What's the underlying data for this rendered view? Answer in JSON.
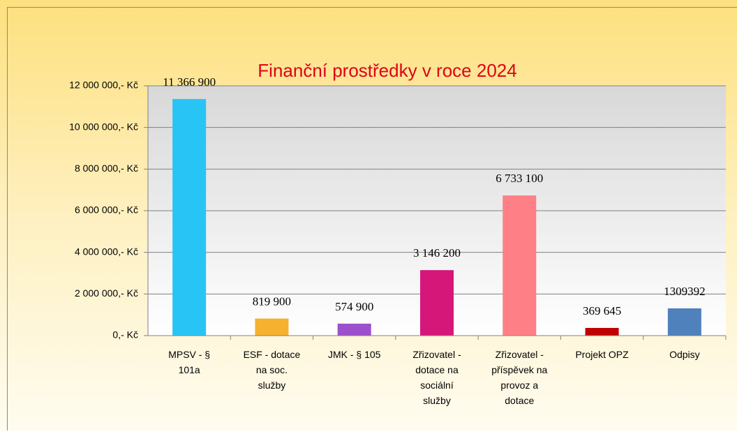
{
  "chart_data": {
    "type": "bar",
    "title": "Finanční prostředky v roce 2024",
    "categories": [
      "MPSV - § 101a",
      "ESF - dotace na soc. služby",
      "JMK - § 105",
      "Zřizovatel - dotace na sociální služby",
      "Zřizovatel - příspěvek na provoz a dotace",
      "Projekt OPZ",
      "Odpisy"
    ],
    "values": [
      11366900,
      819900,
      574900,
      3146200,
      6733100,
      369645,
      1309392
    ],
    "value_labels": [
      "11 366 900",
      "819 900",
      "574 900",
      "3 146 200",
      "6 733 100",
      "369 645",
      "1309392"
    ],
    "colors": [
      "#29c4f6",
      "#f6b12f",
      "#9b50cc",
      "#d5177a",
      "#ff7f86",
      "#c00000",
      "#4f81bd"
    ],
    "ylim": [
      0,
      12000000
    ],
    "yticks": [
      {
        "value": 0,
        "label": "0,- Kč"
      },
      {
        "value": 2000000,
        "label": "2 000 000,- Kč"
      },
      {
        "value": 4000000,
        "label": "4 000 000,- Kč"
      },
      {
        "value": 6000000,
        "label": "6 000 000,- Kč"
      },
      {
        "value": 8000000,
        "label": "8 000 000,- Kč"
      },
      {
        "value": 10000000,
        "label": "10 000 000,- Kč"
      },
      {
        "value": 12000000,
        "label": "12 000 000,- Kč"
      }
    ],
    "grid": true
  }
}
